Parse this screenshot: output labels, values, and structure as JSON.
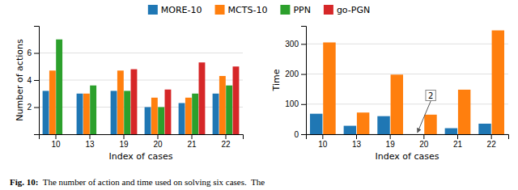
{
  "chart_data": [
    {
      "type": "bar",
      "categories": [
        10,
        13,
        19,
        20,
        21,
        22
      ],
      "xlabel": "Index of cases",
      "ylabel": "Number of actions",
      "ylim": [
        0,
        8
      ],
      "yticks": [
        2,
        4,
        6
      ],
      "grid": true,
      "legend": "top",
      "series": [
        {
          "name": "MORE-10",
          "values": [
            3.2,
            3.0,
            3.2,
            2.0,
            2.3,
            3.0
          ]
        },
        {
          "name": "MCTS-10",
          "values": [
            4.7,
            3.0,
            4.7,
            2.7,
            2.7,
            4.3
          ]
        },
        {
          "name": "PPN",
          "values": [
            7.0,
            3.6,
            3.2,
            2.0,
            3.0,
            3.6
          ]
        },
        {
          "name": "go-PGN",
          "values": [
            null,
            null,
            4.8,
            3.3,
            5.3,
            5.0
          ]
        }
      ]
    },
    {
      "type": "bar",
      "categories": [
        10,
        13,
        19,
        20,
        21,
        22
      ],
      "xlabel": "Index of cases",
      "ylabel": "Time",
      "ylim": [
        0,
        360
      ],
      "yticks": [
        0,
        100,
        200,
        300
      ],
      "grid": true,
      "series": [
        {
          "name": "MORE-10",
          "values": [
            68,
            28,
            60,
            null,
            20,
            35
          ]
        },
        {
          "name": "MCTS-10",
          "values": [
            305,
            72,
            198,
            65,
            148,
            345
          ]
        }
      ],
      "annotations": [
        {
          "text": "2",
          "category": 20,
          "series": "MORE-10"
        }
      ]
    }
  ],
  "caption": [
    "Fig. 10:",
    "  The number of action and time used on solving six cases.  The"
  ]
}
